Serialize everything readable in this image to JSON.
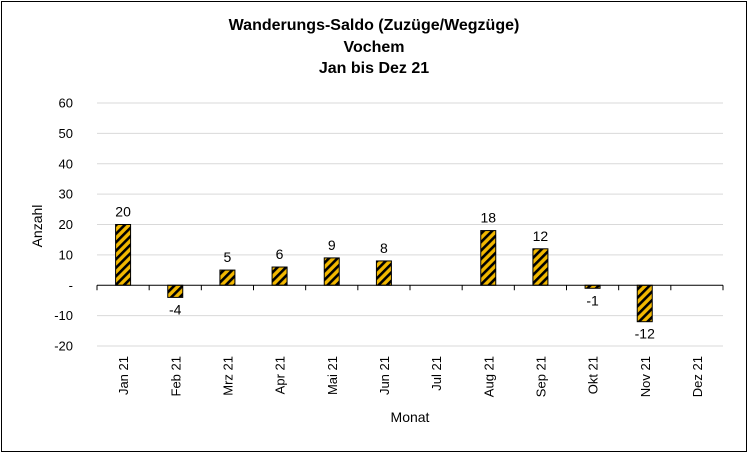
{
  "chart_data": {
    "type": "bar",
    "title": "Wanderungs-Saldo (Zuzüge/Wegzüge)",
    "subtitle": "Vochem",
    "period": "Jan bis Dez 21",
    "xlabel": "Monat",
    "ylabel": "Anzahl",
    "ylim": [
      -20,
      60
    ],
    "yticks": [
      60,
      50,
      40,
      30,
      20,
      10,
      0,
      -10,
      -20
    ],
    "ytick_labels": [
      "60",
      "50",
      "40",
      "30",
      "20",
      "10",
      "-",
      "-10",
      "-20"
    ],
    "grid": true,
    "categories": [
      "Jan 21",
      "Feb 21",
      "Mrz 21",
      "Apr 21",
      "Mai 21",
      "Jun 21",
      "Jul 21",
      "Aug 21",
      "Sep 21",
      "Okt 21",
      "Nov 21",
      "Dez 21"
    ],
    "values": [
      20,
      -4,
      5,
      6,
      9,
      8,
      null,
      18,
      12,
      -1,
      -12,
      null
    ],
    "data_labels": [
      "20",
      "-4",
      "5",
      "6",
      "9",
      "8",
      "",
      "18",
      "12",
      "-1",
      "-12",
      ""
    ],
    "colors": {
      "bar_fill": "#f2b800",
      "hatch": "#000000",
      "grid": "#d9d9d9",
      "subtitle": "#0070c0"
    }
  }
}
